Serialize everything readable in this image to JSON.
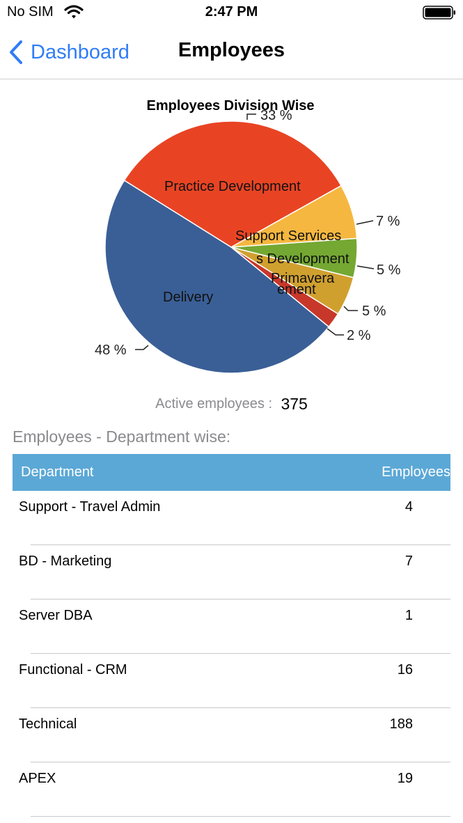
{
  "status_bar": {
    "carrier": "No SIM",
    "time": "2:47 PM",
    "wifi_icon": "wifi-icon",
    "battery_icon": "battery-icon"
  },
  "nav": {
    "back_label": "Dashboard",
    "title": "Employees",
    "back_icon": "chevron-left-icon",
    "accent_color": "#2f7df6"
  },
  "chart_data": {
    "type": "pie",
    "title": "Employees Division Wise",
    "slices": [
      {
        "label": "Practice Development",
        "value": 33,
        "pct_label": "33 %",
        "color": "#e84424"
      },
      {
        "label": "Support Services",
        "value": 7,
        "pct_label": "7 %",
        "color": "#f5b73f"
      },
      {
        "label": "Business Development",
        "value": 5,
        "pct_label": "5 %",
        "color": "#74a832"
      },
      {
        "label": "Primavera Implementation",
        "value": 5,
        "pct_label": "5 %",
        "color": "#d0a02f"
      },
      {
        "label": "",
        "value": 2,
        "pct_label": "2 %",
        "color": "#c8382a"
      },
      {
        "label": "Delivery",
        "value": 48,
        "pct_label": "48 %",
        "color": "#3a5f96"
      }
    ],
    "visible_slice_labels": {
      "practice": "Practice Development",
      "support": "Support Services",
      "business": "s Development",
      "primavera_1": "Primavera",
      "primavera_2": "ement",
      "delivery": "Delivery"
    },
    "legend": "none"
  },
  "summary": {
    "active_label": "Active employees :",
    "active_value": "375"
  },
  "table": {
    "section_title": "Employees - Department wise:",
    "header_color": "#5ba8d6",
    "columns": [
      "Department",
      "Employees"
    ],
    "rows": [
      {
        "department": "Support - Travel Admin",
        "employees": "4"
      },
      {
        "department": "BD - Marketing",
        "employees": "7"
      },
      {
        "department": "Server DBA",
        "employees": "1"
      },
      {
        "department": "Functional - CRM",
        "employees": "16"
      },
      {
        "department": "Technical",
        "employees": "188"
      },
      {
        "department": "APEX",
        "employees": "19"
      }
    ]
  }
}
